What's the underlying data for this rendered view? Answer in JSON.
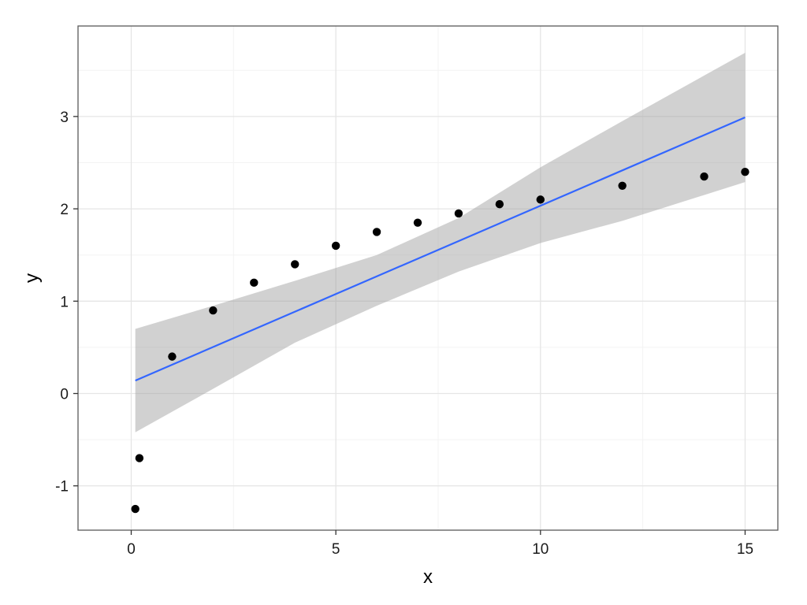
{
  "chart_data": {
    "type": "scatter",
    "title": "",
    "xlabel": "x",
    "ylabel": "y",
    "xlim": [
      -1.3,
      15.8
    ],
    "ylim": [
      -1.48,
      3.98
    ],
    "x_ticks": [
      0,
      5,
      10,
      15
    ],
    "x_tick_labels": [
      "0",
      "5",
      "10",
      "15"
    ],
    "y_ticks": [
      -1,
      0,
      1,
      2,
      3
    ],
    "y_tick_labels": [
      "-1",
      "0",
      "1",
      "2",
      "3"
    ],
    "x_minor_ticks": [
      2.5,
      7.5,
      12.5
    ],
    "y_minor_ticks": [
      -0.5,
      0.5,
      1.5,
      2.5,
      3.5
    ],
    "grid": true,
    "legend": "none",
    "points": {
      "x": [
        0.1,
        0.2,
        1,
        2,
        3,
        4,
        5,
        6,
        7,
        8,
        9,
        10,
        12,
        14,
        15
      ],
      "y": [
        -1.25,
        -0.7,
        0.4,
        0.9,
        1.2,
        1.4,
        1.6,
        1.75,
        1.85,
        1.95,
        2.05,
        2.1,
        2.25,
        2.35,
        2.4
      ]
    },
    "fit_line": {
      "method": "linear",
      "x": [
        0.1,
        15
      ],
      "y": [
        0.14,
        2.99
      ]
    },
    "confidence_band": {
      "x": [
        0.1,
        2,
        4,
        6,
        8,
        10,
        12,
        15
      ],
      "lower": [
        -0.42,
        0.05,
        0.55,
        0.95,
        1.32,
        1.63,
        1.87,
        2.29
      ],
      "upper": [
        0.7,
        0.95,
        1.22,
        1.5,
        1.9,
        2.45,
        2.95,
        3.69
      ]
    },
    "colors": {
      "panel_background": "#ffffff",
      "panel_border": "#595959",
      "grid_major": "#e5e5e5",
      "grid_minor": "#f3f3f3",
      "points": "#000000",
      "fit_line": "#3366ff",
      "band_fill": "#999999"
    }
  }
}
